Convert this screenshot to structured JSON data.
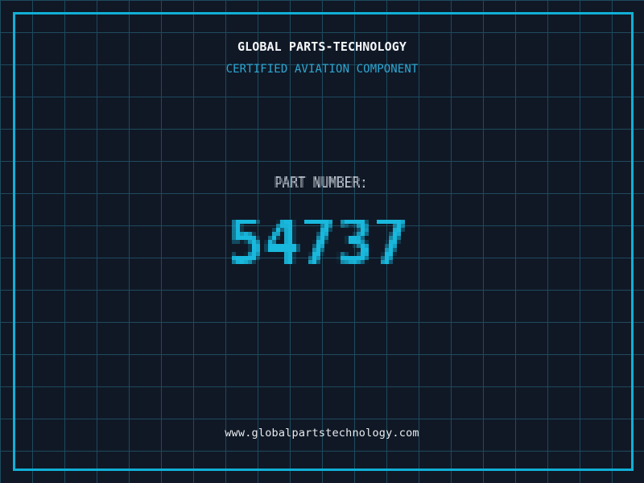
{
  "header": {
    "title": "GLOBAL PARTS-TECHNOLOGY",
    "subtitle": "CERTIFIED AVIATION COMPONENT"
  },
  "part": {
    "label": "PART NUMBER:",
    "number": "54737"
  },
  "footer": {
    "website": "www.globalpartstechnology.com"
  },
  "colors": {
    "background": "#101826",
    "grid_line": "#1d4a5e",
    "frame_border": "#10b0d6",
    "title_text": "#f4f6f8",
    "subtitle_text": "#2da7d2",
    "part_label_text": "#c7cfd8",
    "part_number_text": "#19b8dd",
    "website_text": "#e9ecee"
  }
}
